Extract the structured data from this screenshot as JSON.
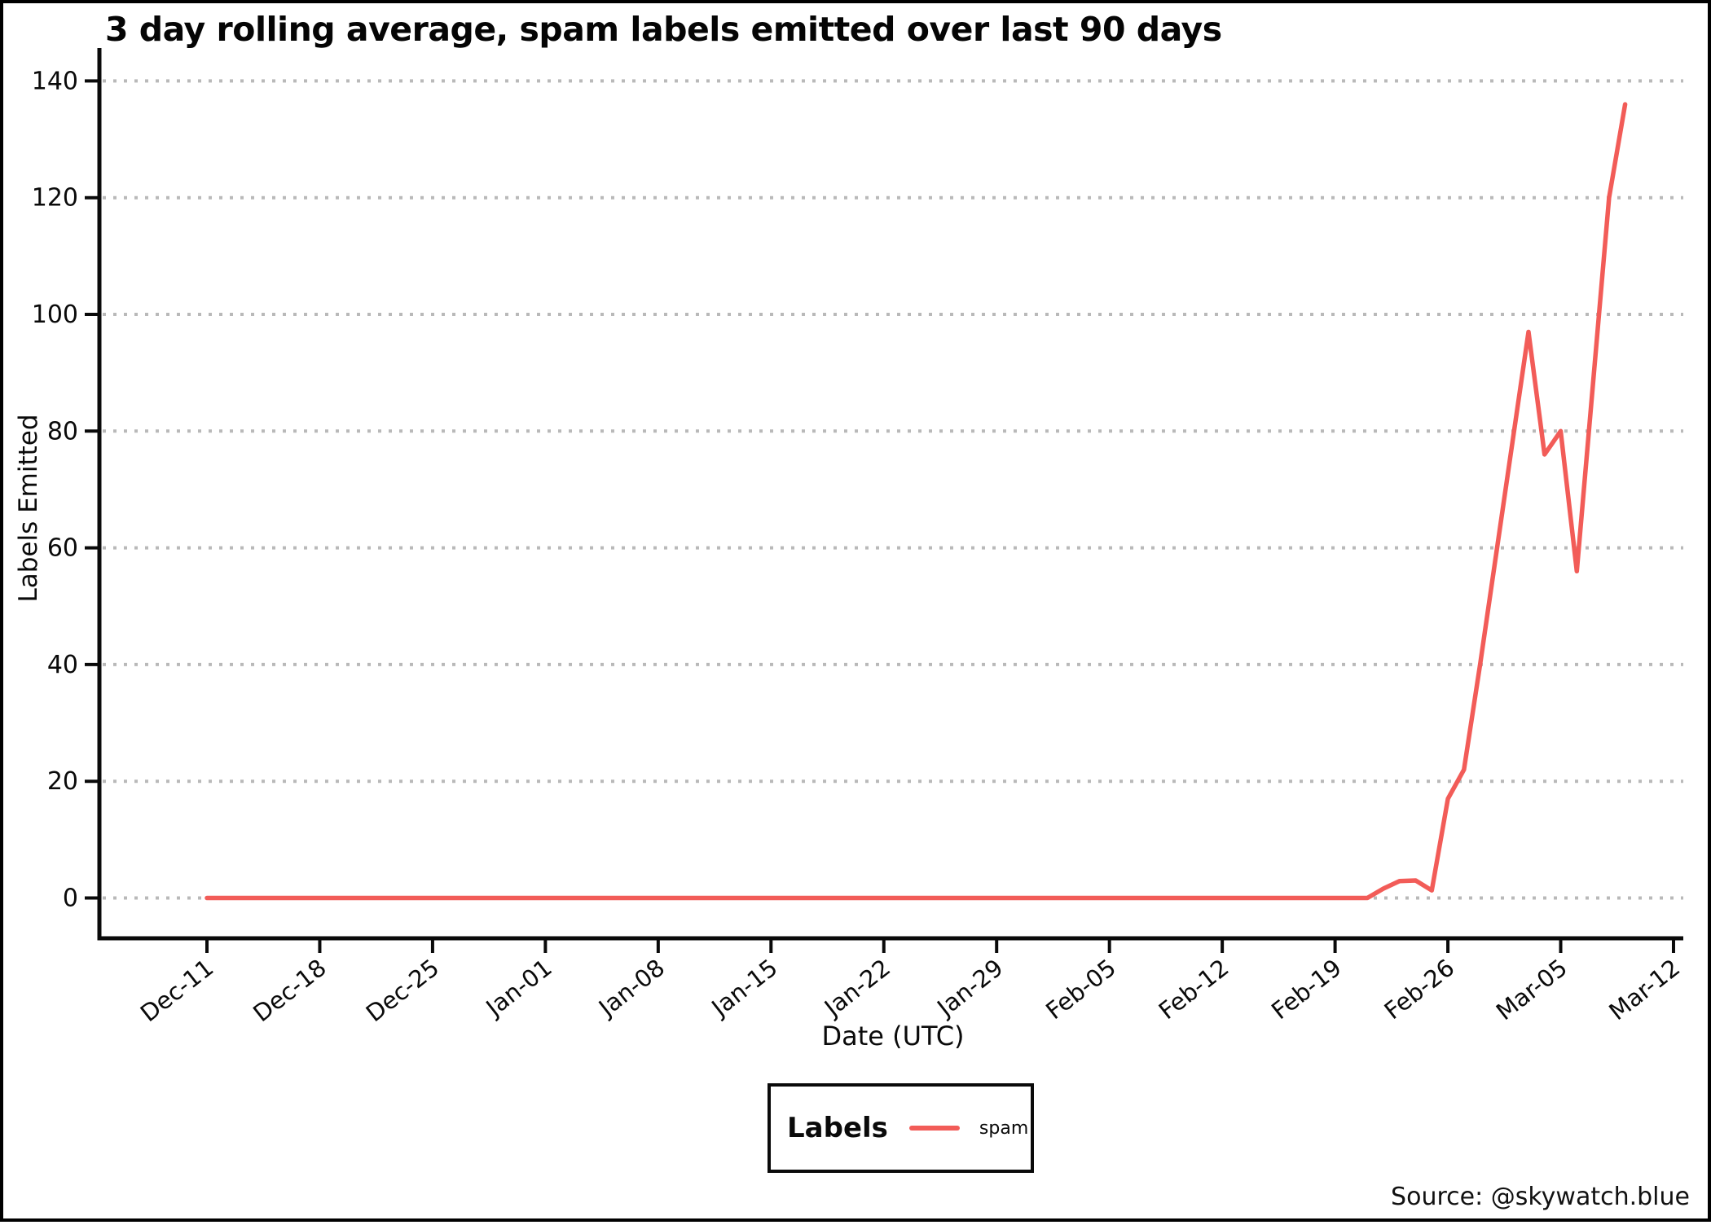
{
  "title": "3 day rolling average, spam labels emitted over last 90 days",
  "axes": {
    "y_label": "Labels Emitted",
    "x_label": "Date (UTC)"
  },
  "legend": {
    "title": "Labels",
    "items": [
      {
        "label": "spam",
        "color": "#F25C58"
      }
    ]
  },
  "source": "Source: @skywatch.blue",
  "colors": {
    "line": "#F25C58",
    "grid": "#b9b9b9",
    "axis": "#0a0a0a",
    "background": "#ffffff"
  },
  "chart_data": {
    "type": "line",
    "title": "3 day rolling average, spam labels emitted over last 90 days",
    "xlabel": "Date (UTC)",
    "ylabel": "Labels Emitted",
    "ylim": [
      0,
      140
    ],
    "y_ticks": [
      0,
      20,
      40,
      60,
      80,
      100,
      120,
      140
    ],
    "x_tick_labels": [
      "Dec-11",
      "Dec-18",
      "Dec-25",
      "Jan-01",
      "Jan-08",
      "Jan-15",
      "Jan-22",
      "Jan-29",
      "Feb-05",
      "Feb-12",
      "Feb-19",
      "Feb-26",
      "Mar-05",
      "Mar-12"
    ],
    "grid": "horizontal-dotted",
    "legend_position": "bottom-center",
    "series": [
      {
        "name": "spam",
        "color": "#F25C58",
        "dates": [
          "Dec-11",
          "Dec-12",
          "Dec-13",
          "Dec-14",
          "Dec-15",
          "Dec-16",
          "Dec-17",
          "Dec-18",
          "Dec-19",
          "Dec-20",
          "Dec-21",
          "Dec-22",
          "Dec-23",
          "Dec-24",
          "Dec-25",
          "Dec-26",
          "Dec-27",
          "Dec-28",
          "Dec-29",
          "Dec-30",
          "Dec-31",
          "Jan-01",
          "Jan-02",
          "Jan-03",
          "Jan-04",
          "Jan-05",
          "Jan-06",
          "Jan-07",
          "Jan-08",
          "Jan-09",
          "Jan-10",
          "Jan-11",
          "Jan-12",
          "Jan-13",
          "Jan-14",
          "Jan-15",
          "Jan-16",
          "Jan-17",
          "Jan-18",
          "Jan-19",
          "Jan-20",
          "Jan-21",
          "Jan-22",
          "Jan-23",
          "Jan-24",
          "Jan-25",
          "Jan-26",
          "Jan-27",
          "Jan-28",
          "Jan-29",
          "Jan-30",
          "Jan-31",
          "Feb-01",
          "Feb-02",
          "Feb-03",
          "Feb-04",
          "Feb-05",
          "Feb-06",
          "Feb-07",
          "Feb-08",
          "Feb-09",
          "Feb-10",
          "Feb-11",
          "Feb-12",
          "Feb-13",
          "Feb-14",
          "Feb-15",
          "Feb-16",
          "Feb-17",
          "Feb-18",
          "Feb-19",
          "Feb-20",
          "Feb-21",
          "Feb-22",
          "Feb-23",
          "Feb-24",
          "Feb-25",
          "Feb-26",
          "Feb-27",
          "Feb-28",
          "Mar-01",
          "Mar-02",
          "Mar-03",
          "Mar-04",
          "Mar-05",
          "Mar-06",
          "Mar-07",
          "Mar-08",
          "Mar-09"
        ],
        "values": [
          0,
          0,
          0,
          0,
          0,
          0,
          0,
          0,
          0,
          0,
          0,
          0,
          0,
          0,
          0,
          0,
          0,
          0,
          0,
          0,
          0,
          0,
          0,
          0,
          0,
          0,
          0,
          0,
          0,
          0,
          0,
          0,
          0,
          0,
          0,
          0,
          0,
          0,
          0,
          0,
          0,
          0,
          0,
          0,
          0,
          0,
          0,
          0,
          0,
          0,
          0,
          0,
          0,
          0,
          0,
          0,
          0,
          0,
          0,
          0,
          0,
          0,
          0,
          0,
          0,
          0,
          0,
          0,
          0,
          0,
          0,
          0,
          0,
          1.6,
          2.9,
          3.0,
          1.3,
          17,
          22,
          40,
          59,
          78,
          97,
          76,
          80,
          56,
          88,
          120,
          136
        ]
      }
    ]
  }
}
